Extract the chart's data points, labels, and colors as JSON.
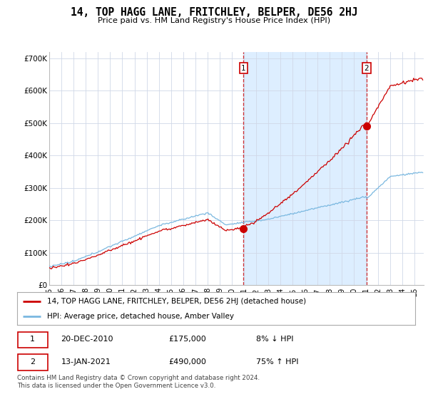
{
  "title": "14, TOP HAGG LANE, FRITCHLEY, BELPER, DE56 2HJ",
  "subtitle": "Price paid vs. HM Land Registry's House Price Index (HPI)",
  "ylabel_ticks": [
    "£0",
    "£100K",
    "£200K",
    "£300K",
    "£400K",
    "£500K",
    "£600K",
    "£700K"
  ],
  "ytick_values": [
    0,
    100000,
    200000,
    300000,
    400000,
    500000,
    600000,
    700000
  ],
  "ylim": [
    0,
    720000
  ],
  "year_start": 1995,
  "year_end": 2025,
  "sale1_year": 2010.96,
  "sale1_price": 175000,
  "sale1_hpi_pct": "8% ↓ HPI",
  "sale1_date": "20-DEC-2010",
  "sale2_year": 2021.04,
  "sale2_price": 490000,
  "sale2_hpi_pct": "75% ↑ HPI",
  "sale2_date": "13-JAN-2021",
  "legend_line1": "14, TOP HAGG LANE, FRITCHLEY, BELPER, DE56 2HJ (detached house)",
  "legend_line2": "HPI: Average price, detached house, Amber Valley",
  "footer": "Contains HM Land Registry data © Crown copyright and database right 2024.\nThis data is licensed under the Open Government Licence v3.0.",
  "hpi_color": "#7ab8e0",
  "sale_color": "#cc0000",
  "grid_color": "#d0d8e8",
  "shade_color": "#ddeeff",
  "vline_color": "#cc0000",
  "background_color": "#ffffff"
}
